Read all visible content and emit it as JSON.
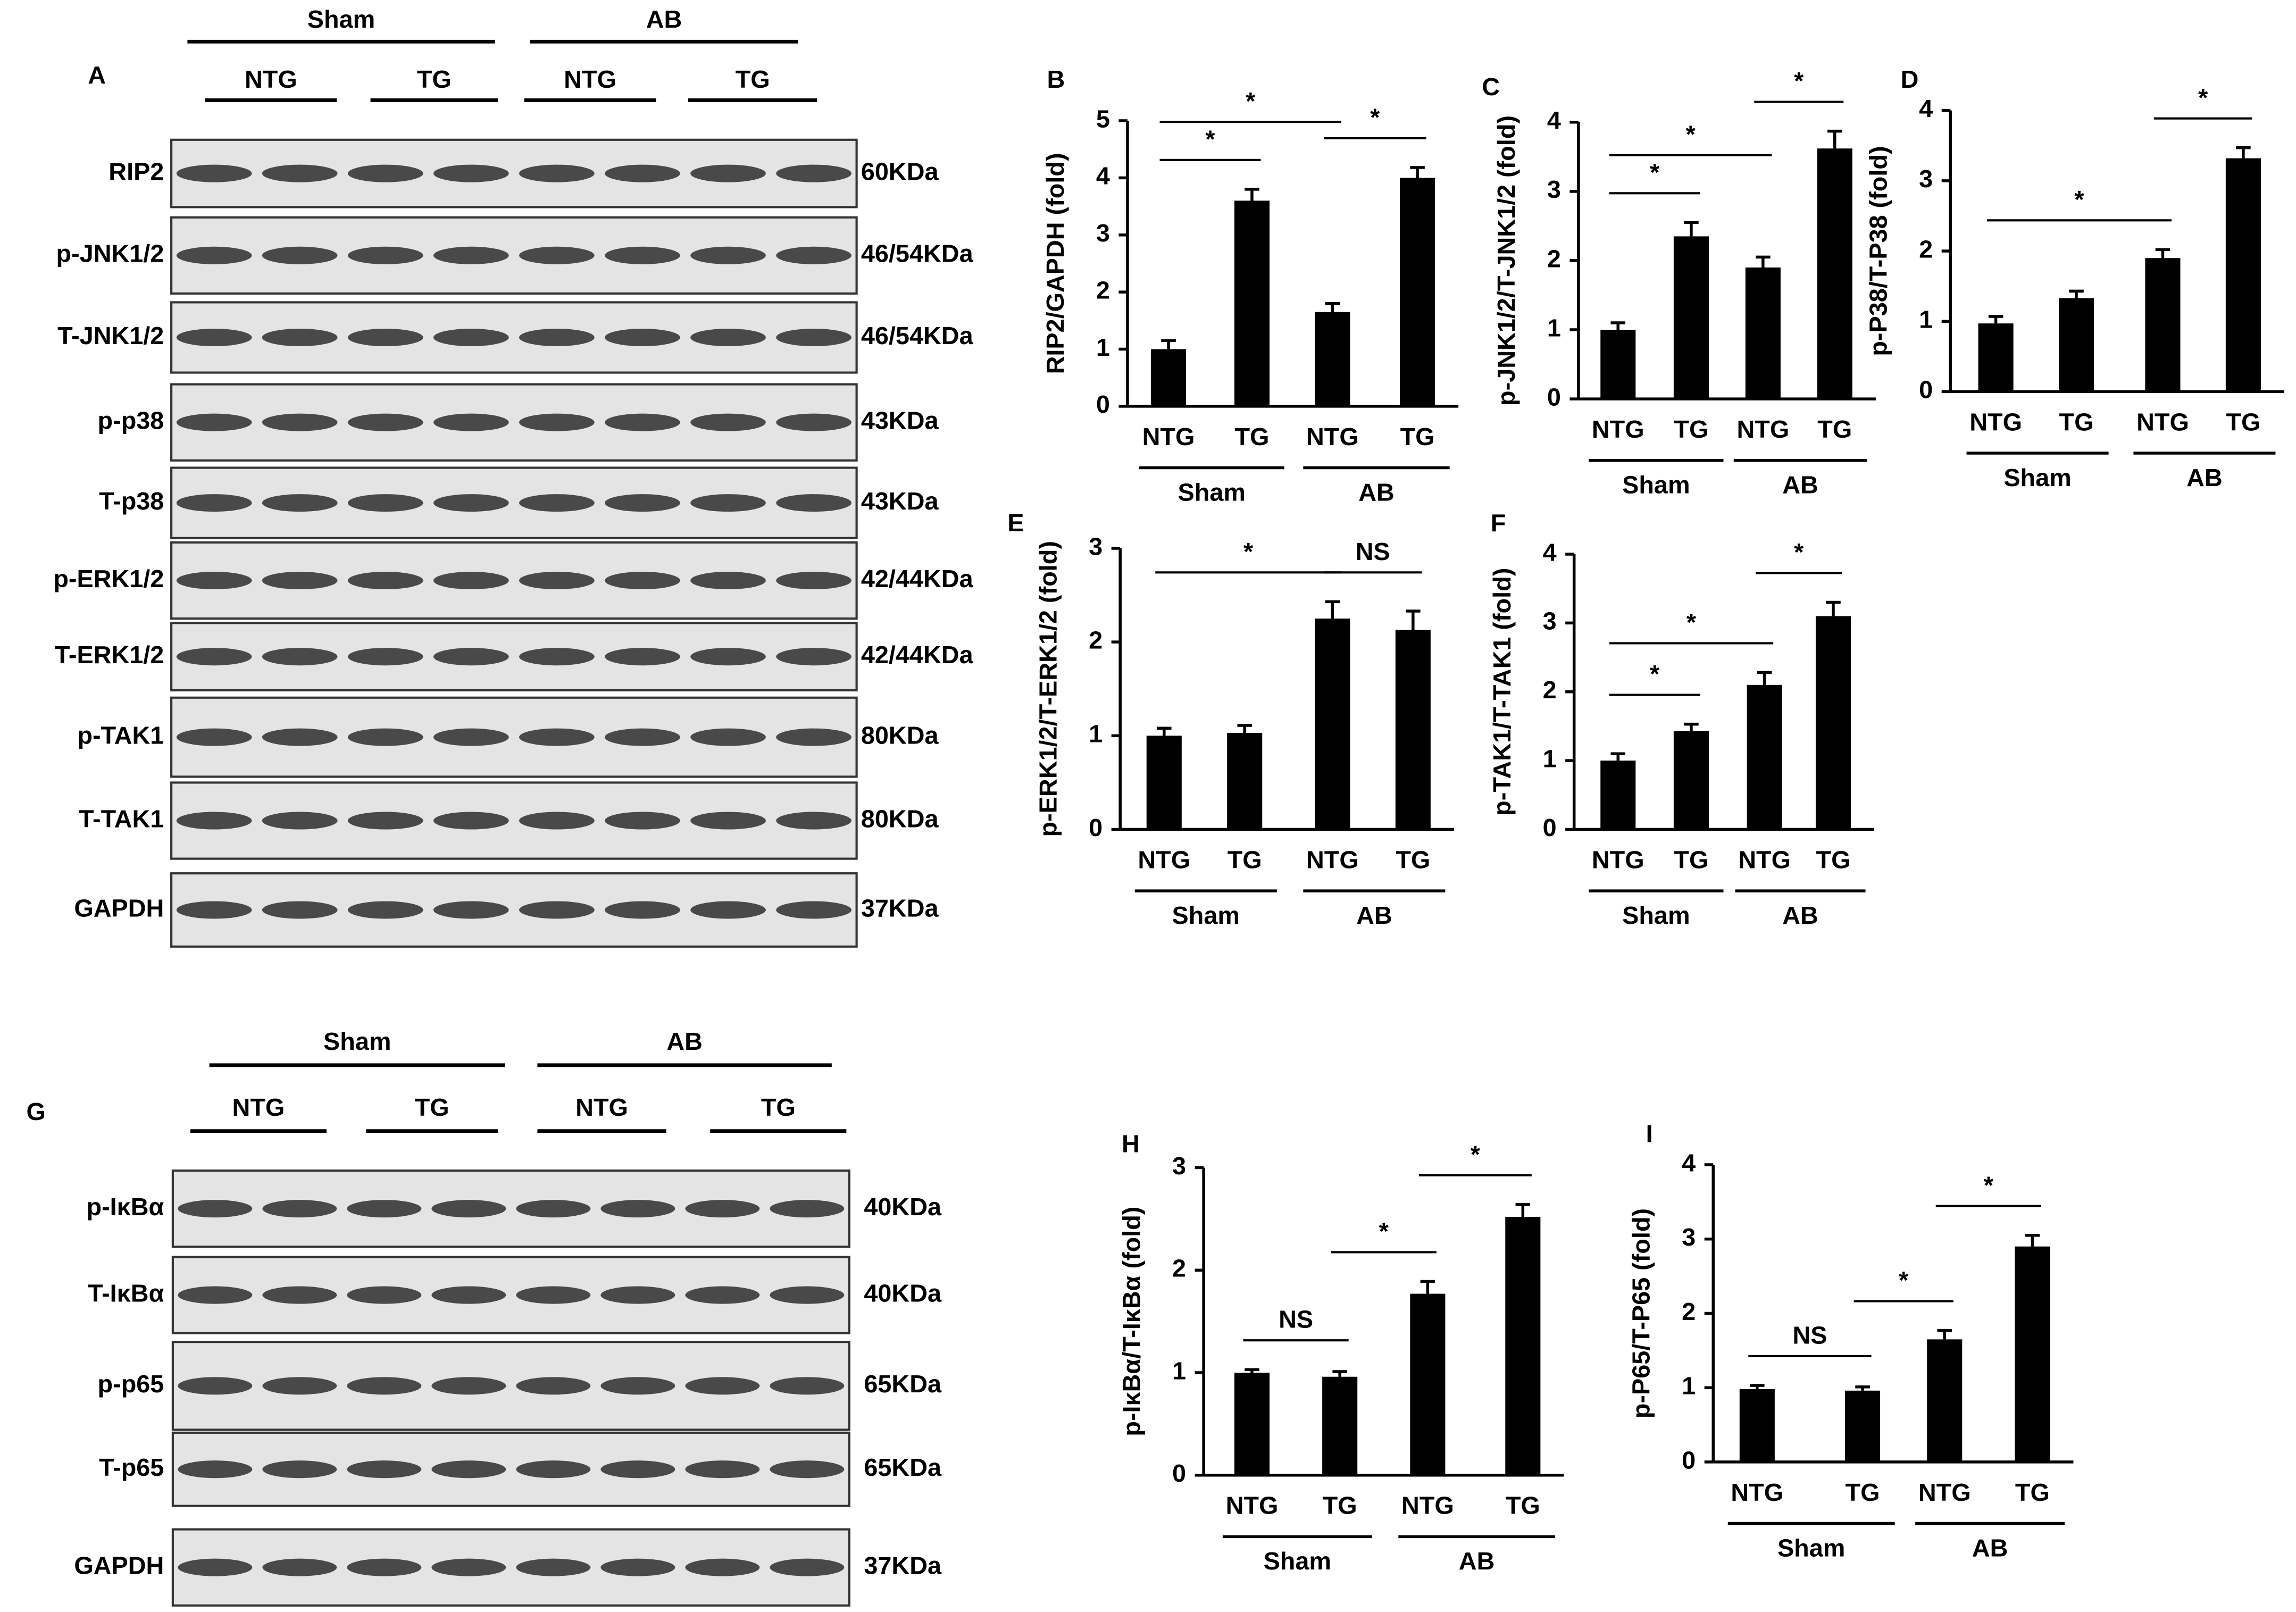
{
  "blots": [
    {
      "panel": "A",
      "groups": [
        "Sham",
        "AB"
      ],
      "subgroups": [
        "NTG",
        "TG",
        "NTG",
        "TG"
      ],
      "rows": [
        {
          "name": "RIP2",
          "size": "60KDa"
        },
        {
          "name": "p-JNK1/2",
          "size": "46/54KDa"
        },
        {
          "name": "T-JNK1/2",
          "size": "46/54KDa"
        },
        {
          "name": "p-p38",
          "size": "43KDa"
        },
        {
          "name": "T-p38",
          "size": "43KDa"
        },
        {
          "name": "p-ERK1/2",
          "size": "42/44KDa"
        },
        {
          "name": "T-ERK1/2",
          "size": "42/44KDa"
        },
        {
          "name": "p-TAK1",
          "size": "80KDa"
        },
        {
          "name": "T-TAK1",
          "size": "80KDa"
        },
        {
          "name": "GAPDH",
          "size": "37KDa"
        }
      ]
    },
    {
      "panel": "G",
      "groups": [
        "Sham",
        "AB"
      ],
      "subgroups": [
        "NTG",
        "TG",
        "NTG",
        "TG"
      ],
      "rows": [
        {
          "name": "p-IκBα",
          "size": "40KDa"
        },
        {
          "name": "T-IκBα",
          "size": "40KDa"
        },
        {
          "name": "p-p65",
          "size": "65KDa"
        },
        {
          "name": "T-p65",
          "size": "65KDa"
        },
        {
          "name": "GAPDH",
          "size": "37KDa"
        }
      ]
    }
  ],
  "chart_data": [
    {
      "type": "bar",
      "panel": "B",
      "ylabel": "RIP2/GAPDH (fold)",
      "categories": [
        "NTG",
        "TG",
        "NTG",
        "TG"
      ],
      "groups": [
        "Sham",
        "AB"
      ],
      "color": "#000000",
      "values": [
        1.0,
        3.6,
        1.65,
        4.0
      ],
      "errors": [
        0.15,
        0.2,
        0.15,
        0.18
      ],
      "ylim": [
        0,
        5
      ],
      "yticks": [
        0,
        1,
        2,
        3,
        4,
        5
      ],
      "annotations": [
        {
          "label": "*",
          "bars": [
            0,
            1
          ]
        },
        {
          "label": "*",
          "bars": [
            0,
            2
          ]
        },
        {
          "label": "*",
          "bars": [
            2,
            3
          ]
        }
      ]
    },
    {
      "type": "bar",
      "panel": "C",
      "ylabel": "p-JNK1/2/T-JNK1/2 (fold)",
      "categories": [
        "NTG",
        "TG",
        "NTG",
        "TG"
      ],
      "groups": [
        "Sham",
        "AB"
      ],
      "color": "#000000",
      "values": [
        1.0,
        2.35,
        1.9,
        3.62
      ],
      "errors": [
        0.1,
        0.2,
        0.15,
        0.25
      ],
      "ylim": [
        0,
        4
      ],
      "yticks": [
        0,
        1,
        2,
        3,
        4
      ],
      "annotations": [
        {
          "label": "*",
          "bars": [
            0,
            1
          ]
        },
        {
          "label": "*",
          "bars": [
            0,
            2
          ]
        },
        {
          "label": "*",
          "bars": [
            2,
            3
          ]
        }
      ]
    },
    {
      "type": "bar",
      "panel": "D",
      "ylabel": "p-P38/T-P38 (fold)",
      "categories": [
        "NTG",
        "TG",
        "NTG",
        "TG"
      ],
      "groups": [
        "Sham",
        "AB"
      ],
      "color": "#000000",
      "values": [
        0.97,
        1.33,
        1.9,
        3.32
      ],
      "errors": [
        0.1,
        0.1,
        0.12,
        0.15
      ],
      "ylim": [
        0,
        4
      ],
      "yticks": [
        0,
        1,
        2,
        3,
        4
      ],
      "annotations": [
        {
          "label": "*",
          "bars": [
            0,
            2
          ]
        },
        {
          "label": "*",
          "bars": [
            2,
            3
          ]
        }
      ]
    },
    {
      "type": "bar",
      "panel": "E",
      "ylabel": "p-ERK1/2/T-ERK1/2 (fold)",
      "categories": [
        "NTG",
        "TG",
        "NTG",
        "TG"
      ],
      "groups": [
        "Sham",
        "AB"
      ],
      "color": "#000000",
      "values": [
        1.0,
        1.03,
        2.25,
        2.13
      ],
      "errors": [
        0.08,
        0.08,
        0.18,
        0.2
      ],
      "ylim": [
        0,
        3
      ],
      "yticks": [
        0,
        1,
        2,
        3
      ],
      "annotations": [
        {
          "label": "*",
          "bars": [
            0,
            2
          ]
        },
        {
          "label": "NS",
          "bars": [
            2,
            3
          ]
        }
      ]
    },
    {
      "type": "bar",
      "panel": "F",
      "ylabel": "p-TAK1/T-TAK1 (fold)",
      "categories": [
        "NTG",
        "TG",
        "NTG",
        "TG"
      ],
      "groups": [
        "Sham",
        "AB"
      ],
      "color": "#000000",
      "values": [
        1.0,
        1.43,
        2.1,
        3.1
      ],
      "errors": [
        0.1,
        0.1,
        0.18,
        0.2
      ],
      "ylim": [
        0,
        4
      ],
      "yticks": [
        0,
        1,
        2,
        3,
        4
      ],
      "annotations": [
        {
          "label": "*",
          "bars": [
            0,
            1
          ]
        },
        {
          "label": "*",
          "bars": [
            0,
            2
          ]
        },
        {
          "label": "*",
          "bars": [
            2,
            3
          ]
        }
      ]
    },
    {
      "type": "bar",
      "panel": "H",
      "ylabel": "p-IκBα/T-IκBα (fold)",
      "categories": [
        "NTG",
        "TG",
        "NTG",
        "TG"
      ],
      "groups": [
        "Sham",
        "AB"
      ],
      "color": "#000000",
      "values": [
        1.0,
        0.96,
        1.77,
        2.52
      ],
      "errors": [
        0.03,
        0.05,
        0.12,
        0.12
      ],
      "ylim": [
        0,
        3
      ],
      "yticks": [
        0,
        1,
        2,
        3
      ],
      "annotations": [
        {
          "label": "NS",
          "bars": [
            0,
            1
          ]
        },
        {
          "label": "*",
          "bars": [
            1,
            2
          ]
        },
        {
          "label": "*",
          "bars": [
            2,
            3
          ]
        }
      ]
    },
    {
      "type": "bar",
      "panel": "I",
      "ylabel": "p-P65/T-P65 (fold)",
      "categories": [
        "NTG",
        "TG",
        "NTG",
        "TG"
      ],
      "groups": [
        "Sham",
        "AB"
      ],
      "color": "#000000",
      "values": [
        0.98,
        0.96,
        1.65,
        2.9
      ],
      "errors": [
        0.05,
        0.05,
        0.12,
        0.15
      ],
      "ylim": [
        0,
        4
      ],
      "yticks": [
        0,
        1,
        2,
        3,
        4
      ],
      "annotations": [
        {
          "label": "NS",
          "bars": [
            0,
            1
          ]
        },
        {
          "label": "*",
          "bars": [
            1,
            2
          ]
        },
        {
          "label": "*",
          "bars": [
            2,
            3
          ]
        }
      ]
    }
  ]
}
